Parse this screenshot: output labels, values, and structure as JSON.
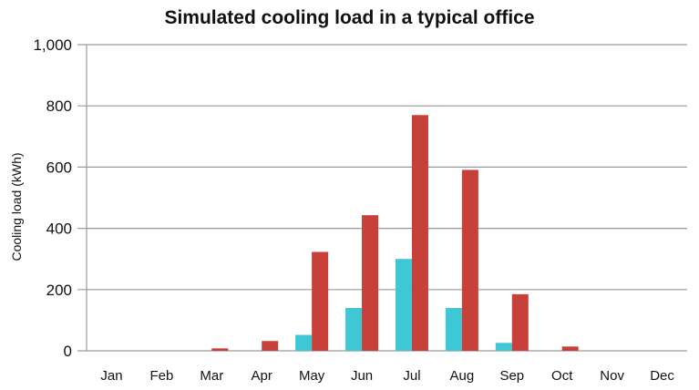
{
  "chart_data": {
    "type": "bar",
    "title": "Simulated cooling load in a typical office",
    "xlabel": "",
    "ylabel": "Cooling load (kWh)",
    "ylim": [
      0,
      1000
    ],
    "yticks": [
      0,
      200,
      400,
      600,
      800,
      1000
    ],
    "ytick_labels": [
      "0",
      "200",
      "400",
      "600",
      "800",
      "1,000"
    ],
    "grid": true,
    "legend": "none",
    "categories": [
      "Jan",
      "Feb",
      "Mar",
      "Apr",
      "May",
      "Jun",
      "Jul",
      "Aug",
      "Sep",
      "Oct",
      "Nov",
      "Dec"
    ],
    "series": [
      {
        "color": "#3EC8D6",
        "values": [
          0,
          0,
          0,
          0,
          52,
          140,
          300,
          140,
          26,
          0,
          0,
          0
        ]
      },
      {
        "color": "#C8403A",
        "values": [
          0,
          0,
          8,
          32,
          323,
          443,
          770,
          591,
          185,
          14,
          0,
          0
        ]
      }
    ]
  }
}
